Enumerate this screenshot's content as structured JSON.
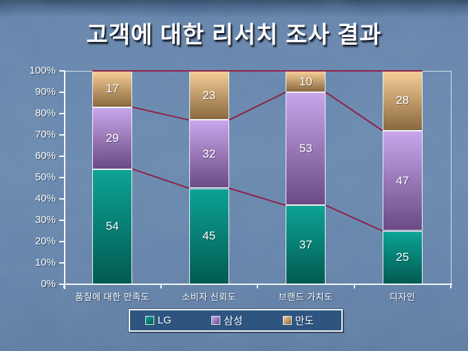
{
  "slide": {
    "title": "고객에 대한 리서치 조사 결과"
  },
  "chart_data": {
    "type": "bar",
    "stacked": true,
    "percent_stacked": true,
    "title": "고객에 대한 리서치 조사 결과",
    "categories": [
      "품질에 대한 만족도",
      "소비자 신뢰도",
      "브랜드 가치도",
      "디자인"
    ],
    "series": [
      {
        "name": "LG",
        "values": [
          54,
          45,
          37,
          25
        ],
        "color_top": "#0da295",
        "color_bottom": "#025b51"
      },
      {
        "name": "삼성",
        "values": [
          29,
          32,
          53,
          47
        ],
        "color_top": "#c9a6ec",
        "color_bottom": "#6b4a84"
      },
      {
        "name": "만도",
        "values": [
          17,
          23,
          10,
          28
        ],
        "color_top": "#f5cd97",
        "color_bottom": "#8a693e"
      }
    ],
    "xlabel": "",
    "ylabel": "",
    "ylim": [
      0,
      100
    ],
    "y_ticks": [
      "0%",
      "10%",
      "20%",
      "30%",
      "40%",
      "50%",
      "60%",
      "70%",
      "80%",
      "90%",
      "100%"
    ],
    "grid": false,
    "legend_position": "bottom",
    "connector_line_color": "#8e2148",
    "axis_color": "#ffffff",
    "label_color": "#ffffff",
    "background_color": "#5d7da6"
  },
  "legend": {
    "items": [
      {
        "label": "LG"
      },
      {
        "label": "삼성"
      },
      {
        "label": "만도"
      }
    ]
  }
}
